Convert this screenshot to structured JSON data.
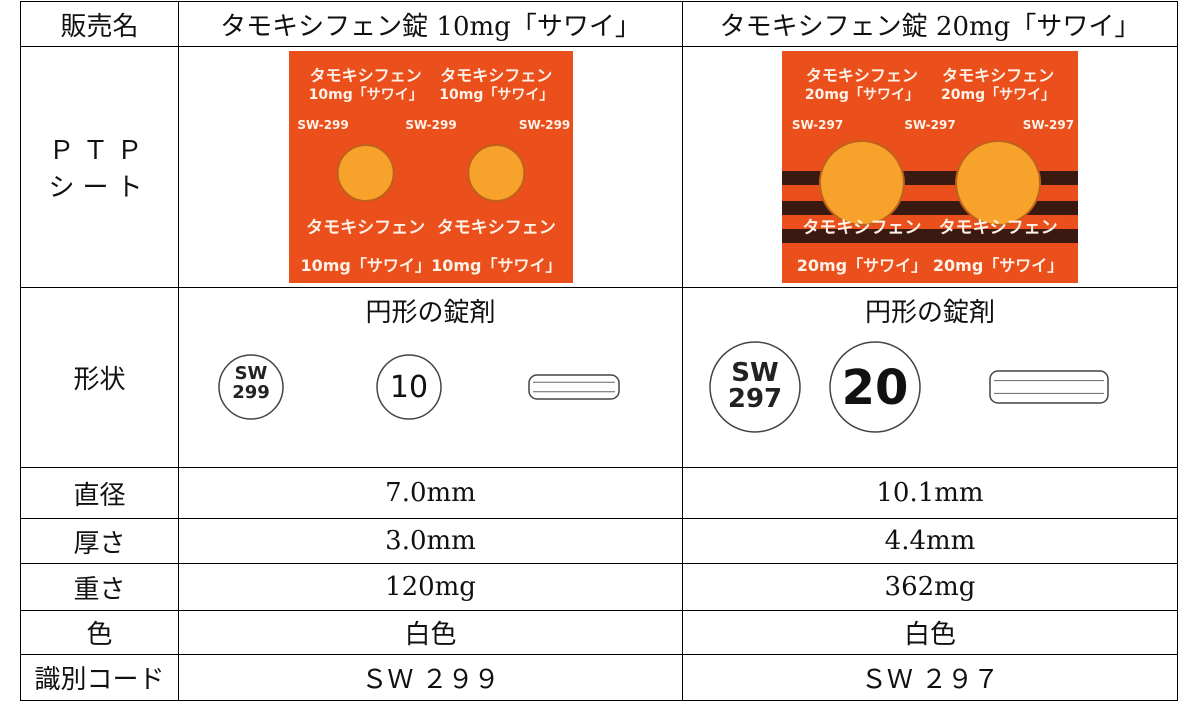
{
  "table": {
    "headers": [
      "販売名",
      "タモキシフェン錠 10mg「サワイ」",
      "タモキシフェン錠 20mg「サワイ」"
    ],
    "ptp_label": [
      "ＰＴＰ",
      "シート"
    ],
    "shape_label": "形状",
    "products": [
      {
        "ptp": {
          "name": "タモキシフェン",
          "dose": "10mg「サワイ」",
          "code": "SW-299"
        },
        "shape": {
          "caption": "円形の錠剤",
          "imprint": [
            "SW",
            "299"
          ],
          "face": "10"
        }
      },
      {
        "ptp": {
          "name": "タモキシフェン",
          "dose": "20mg「サワイ」",
          "code": "SW-297"
        },
        "shape": {
          "caption": "円形の錠剤",
          "imprint": [
            "SW",
            "297"
          ],
          "face": "20"
        }
      }
    ],
    "rows": [
      [
        "直径",
        "7.0mm",
        "10.1mm"
      ],
      [
        "厚さ",
        "3.0mm",
        "4.4mm"
      ],
      [
        "重さ",
        "120mg",
        "362mg"
      ],
      [
        "色",
        "白色",
        "白色"
      ],
      [
        "識別コード",
        "ＳＷ ２９９",
        "ＳＷ ２９７"
      ]
    ]
  }
}
